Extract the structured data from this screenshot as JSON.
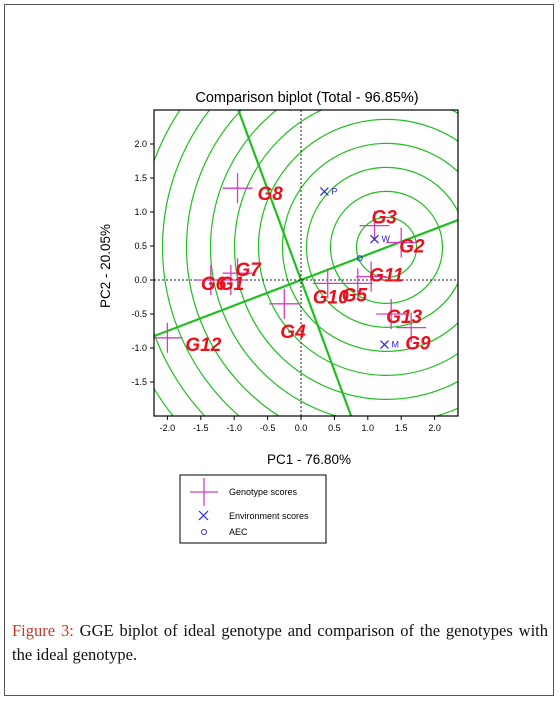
{
  "chart_data": {
    "type": "scatter",
    "title": "Comparison biplot (Total - 96.85%)",
    "xlabel": "PC1 - 76.80%",
    "ylabel": "PC2 - 20.05%",
    "xlim": [
      -2.2,
      2.4
    ],
    "ylim": [
      -2.0,
      2.4
    ],
    "xticks": [
      "-2.0",
      "-1.5",
      "-1.0",
      "-0.5",
      "0.0",
      "0.5",
      "1.0",
      "1.5",
      "2.0"
    ],
    "yticks": [
      "2.0",
      "1.5",
      "1.0",
      "0.5",
      "0.0",
      "-0.5",
      "-1.0",
      "-1.5"
    ],
    "genotypes": [
      {
        "label": "G1",
        "x": -1.05,
        "y": 0.0
      },
      {
        "label": "G2",
        "x": 1.5,
        "y": 0.55
      },
      {
        "label": "G3",
        "x": 1.1,
        "y": 0.8
      },
      {
        "label": "G4",
        "x": -0.25,
        "y": -0.35
      },
      {
        "label": "G5",
        "x": 0.85,
        "y": -0.05
      },
      {
        "label": "G6",
        "x": -1.35,
        "y": 0.0
      },
      {
        "label": "G7",
        "x": -0.95,
        "y": 0.1
      },
      {
        "label": "G8",
        "x": -0.95,
        "y": 1.35
      },
      {
        "label": "G9",
        "x": 1.65,
        "y": -0.7
      },
      {
        "label": "G10",
        "x": 0.4,
        "y": -0.05
      },
      {
        "label": "G11",
        "x": 1.05,
        "y": 0.05
      },
      {
        "label": "G12",
        "x": -2.0,
        "y": -0.85
      },
      {
        "label": "G13",
        "x": 1.35,
        "y": -0.5
      }
    ],
    "environments": [
      {
        "label": "P",
        "x": 0.35,
        "y": 1.3
      },
      {
        "label": "W",
        "x": 1.1,
        "y": 0.6
      },
      {
        "label": "M",
        "x": 1.25,
        "y": -0.95
      }
    ],
    "aec": {
      "x": 0.88,
      "y": 0.32
    },
    "legend": {
      "position": "bottom",
      "items": [
        "Genotype scores",
        "Environment scores",
        "AEC"
      ]
    },
    "colors": {
      "circles": "#1fbf1f",
      "axis_line": "#1fbf1f",
      "genotype": "#d63cc2",
      "genotype_label": "#e8101a",
      "environment": "#2a2ad6"
    }
  },
  "caption": {
    "label": "Figure 3:",
    "text": " GGE biplot of ideal genotype and comparison of the genotypes with the ideal genotype."
  }
}
